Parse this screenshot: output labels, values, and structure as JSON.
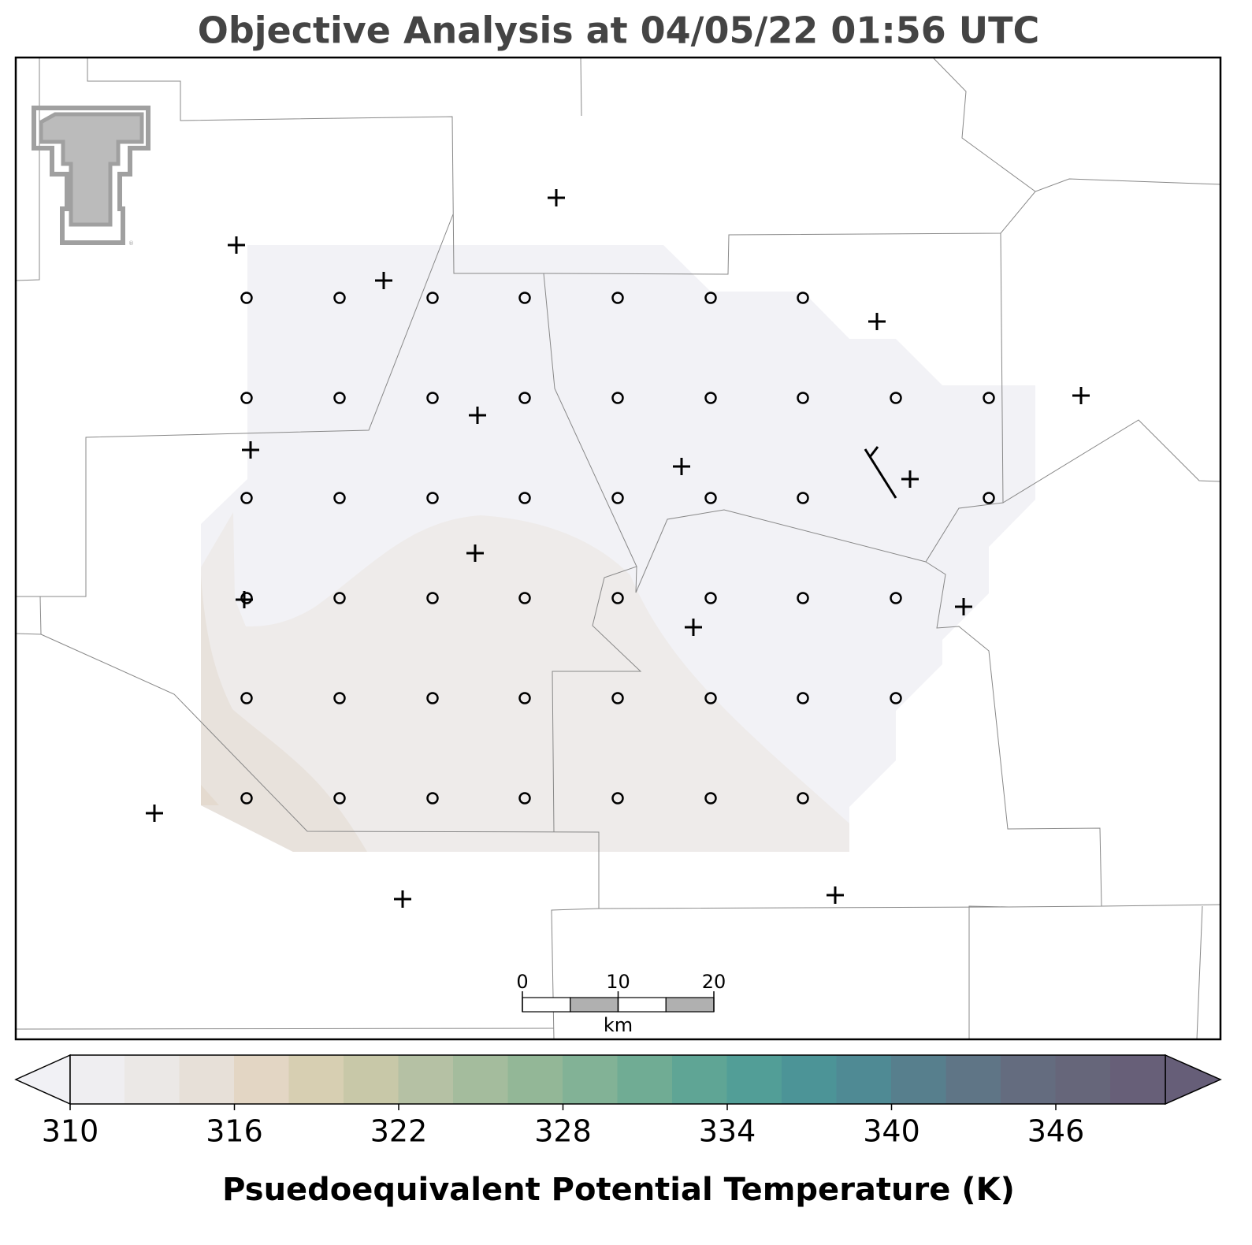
{
  "title": "Objective Analysis at 04/05/22 01:56 UTC",
  "scale_bar": {
    "lim": [
      0,
      20
    ],
    "ticks": [
      0,
      10,
      20
    ],
    "unit": "km"
  },
  "colorbar": {
    "label": "Psuedoequivalent Potential Temperature (K)",
    "bins": [
      310,
      312,
      314,
      316,
      318,
      320,
      322,
      324,
      326,
      328,
      330,
      332,
      334,
      336,
      338,
      340,
      342,
      344,
      346,
      348,
      350
    ],
    "colors": [
      "#efeef1",
      "#ebe8e6",
      "#e7e0d8",
      "#e3d6c4",
      "#d7cfb2",
      "#c8c8a8",
      "#b5c1a4",
      "#a4bc9d",
      "#93b797",
      "#82b296",
      "#70ac94",
      "#5fa595",
      "#529e97",
      "#4c9497",
      "#4f8a94",
      "#577f8d",
      "#5f7586",
      "#646c7f",
      "#66667a",
      "#675f78"
    ],
    "under_color": "#f1f1f5",
    "over_color": "#665e78",
    "ticks": [
      310,
      316,
      322,
      328,
      334,
      340,
      346
    ]
  }
}
